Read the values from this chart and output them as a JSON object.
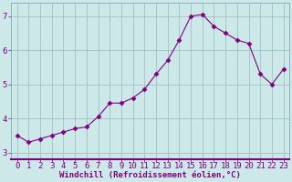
{
  "x": [
    0,
    1,
    2,
    3,
    4,
    5,
    6,
    7,
    8,
    9,
    10,
    11,
    12,
    13,
    14,
    15,
    16,
    17,
    18,
    19,
    20,
    21,
    22,
    23
  ],
  "y": [
    3.5,
    3.3,
    3.4,
    3.5,
    3.6,
    3.7,
    3.75,
    4.05,
    4.45,
    4.45,
    4.6,
    4.85,
    5.3,
    5.7,
    6.3,
    7.0,
    7.05,
    6.7,
    6.5,
    6.3,
    6.2,
    5.3,
    5.0,
    5.45
  ],
  "line_color": "#800080",
  "marker": "D",
  "marker_size": 2.5,
  "xlabel": "Windchill (Refroidissement éolien,°C)",
  "xlim": [
    -0.5,
    23.5
  ],
  "ylim": [
    2.8,
    7.4
  ],
  "yticks": [
    3,
    4,
    5,
    6,
    7
  ],
  "xticks": [
    0,
    1,
    2,
    3,
    4,
    5,
    6,
    7,
    8,
    9,
    10,
    11,
    12,
    13,
    14,
    15,
    16,
    17,
    18,
    19,
    20,
    21,
    22,
    23
  ],
  "background_color": "#cce8e8",
  "grid_color": "#99bbbb",
  "tick_label_color": "#800080",
  "xlabel_color": "#800080",
  "xlabel_fontsize": 6.5,
  "tick_fontsize": 6.5,
  "spine_color": "#7799aa"
}
